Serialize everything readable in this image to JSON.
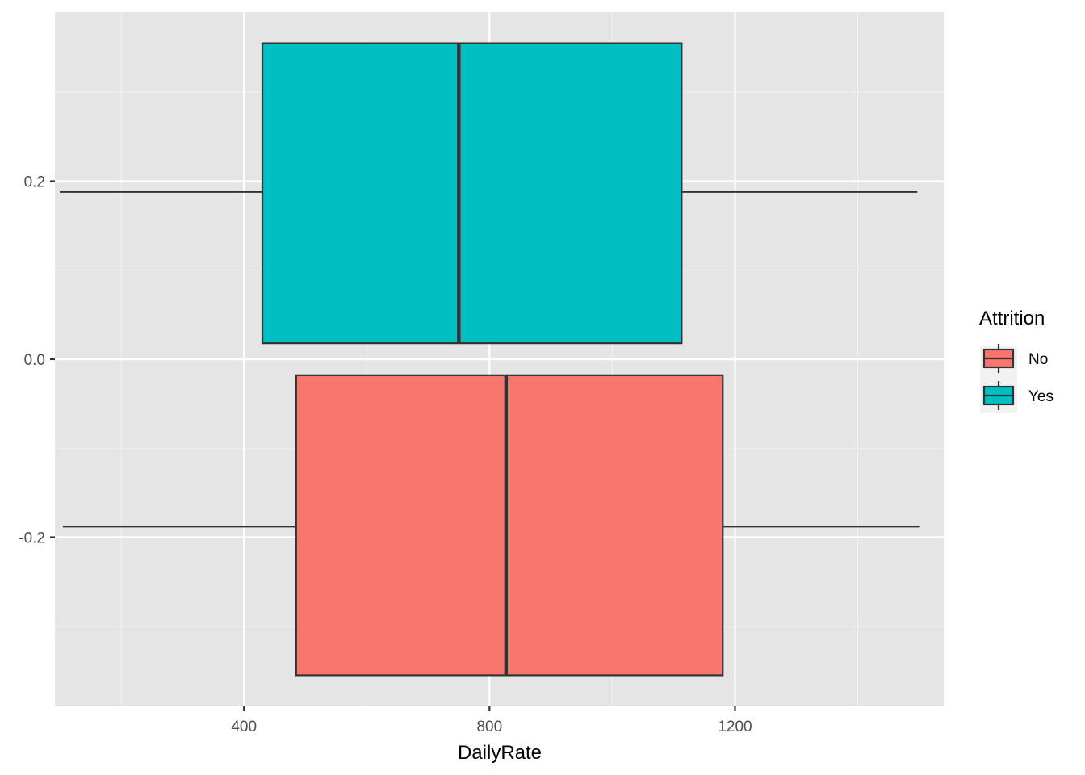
{
  "chart_data": {
    "type": "boxplot",
    "orientation": "horizontal",
    "xlabel": "DailyRate",
    "ylabel": "",
    "xlim": [
      92,
      1540
    ],
    "ylim": [
      -0.39,
      0.39
    ],
    "x_ticks": [
      400,
      800,
      1200
    ],
    "x_minor_ticks": [
      200,
      600,
      1000,
      1400
    ],
    "y_ticks": [
      -0.2,
      0.0,
      0.2
    ],
    "y_tick_labels": [
      "-0.2",
      "0.0",
      "0.2"
    ],
    "y_minor_ticks": [
      -0.3,
      -0.1,
      0.1,
      0.3
    ],
    "grid": true,
    "legend": {
      "title": "Attrition",
      "position": "right",
      "entries": [
        "No",
        "Yes"
      ]
    },
    "series": [
      {
        "name": "No",
        "color": "#F8766D",
        "y_range": [
          -0.355,
          -0.018
        ],
        "whisker_y": -0.188,
        "min": 105,
        "q1": 485,
        "median": 827,
        "q3": 1180,
        "max": 1500
      },
      {
        "name": "Yes",
        "color": "#00BFC4",
        "y_range": [
          0.018,
          0.355
        ],
        "whisker_y": 0.188,
        "min": 100,
        "q1": 430,
        "median": 750,
        "q3": 1113,
        "max": 1497
      }
    ]
  }
}
